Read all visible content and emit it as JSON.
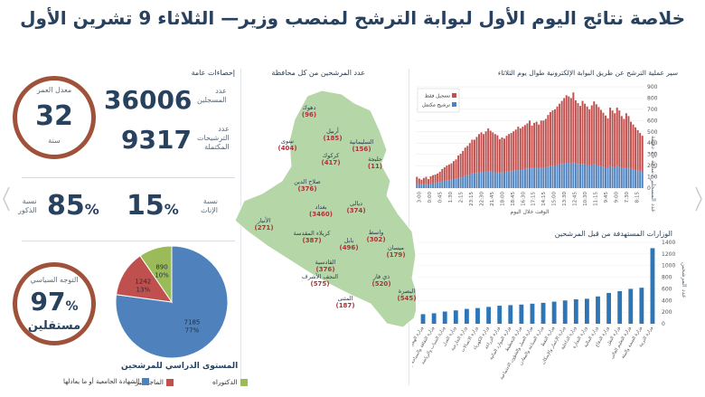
{
  "title": "خلاصة نتائج اليوم الأول لبوابة الترشح لمنصب وزير— الثلاثاء 9 تشرين الأول",
  "stats": {
    "header": "إحصاءات عامة",
    "registered_label_1": "عدد",
    "registered_label_2": "المسجلين",
    "registered_value": "36006",
    "completed_label_1": "عدد",
    "completed_label_2": "الترشيحات",
    "completed_label_3": "المكتملة",
    "completed_value": "9317",
    "avg_age_label": "معدل العمر",
    "avg_age_value": "32",
    "avg_age_unit": "سنة",
    "female_label_1": "نسبة",
    "female_label_2": "الإناث",
    "female_value": "15",
    "male_label_1": "نسبة",
    "male_label_2": "الذكور",
    "male_value": "85",
    "percent_sign": "%",
    "political_label": "التوجه السياسي",
    "political_value": "97",
    "political_sub": "مستقلين"
  },
  "map": {
    "header": "عدد المرشحين من كل محافظة",
    "provinces": [
      {
        "name": "دهوك",
        "value": "(96)"
      },
      {
        "name": "أربيل",
        "value": "(185)"
      },
      {
        "name": "نينوى",
        "value": "(404)"
      },
      {
        "name": "السليمانية",
        "value": "(156)"
      },
      {
        "name": "كركوك",
        "value": "(417)"
      },
      {
        "name": "حلبجة",
        "value": "(11)"
      },
      {
        "name": "صلاح الدين",
        "value": "(376)"
      },
      {
        "name": "ديالى",
        "value": "(374)"
      },
      {
        "name": "بغداد",
        "value": "(3460)"
      },
      {
        "name": "الأنبار",
        "value": "(271)"
      },
      {
        "name": "واسط",
        "value": "(302)"
      },
      {
        "name": "كربلاء المقدسة",
        "value": "(387)"
      },
      {
        "name": "بابل",
        "value": "(496)"
      },
      {
        "name": "القادسية",
        "value": "(376)"
      },
      {
        "name": "النجف الأشرف",
        "value": "(575)"
      },
      {
        "name": "ميسان",
        "value": "(179)"
      },
      {
        "name": "ذي قار",
        "value": "(520)"
      },
      {
        "name": "المثنى",
        "value": "(187)"
      },
      {
        "name": "البصرة",
        "value": "(545)"
      }
    ]
  },
  "chart_data": [
    {
      "type": "bar",
      "title": "سير عملية الترشح عن طريق البوابة الإلكترونية طوال يوم الثلاثاء",
      "xlabel": "الوقت خلال اليوم",
      "ylabel": "عدد المسجلين/ ساعة 15 دقيقة",
      "ylim": [
        0,
        900
      ],
      "yticks": [
        "0",
        "100",
        "200",
        "300",
        "400",
        "500",
        "600",
        "700",
        "800",
        "900"
      ],
      "xticks": [
        "3:00",
        "0:00",
        "0:45",
        "1:30",
        "2:15",
        "23:15",
        "22:30",
        "21:45",
        "18:00",
        "18:45",
        "16:30",
        "17:15",
        "14:15",
        "15:00",
        "13:30",
        "12:45",
        "10:30",
        "11:15",
        "9:45",
        "9:00",
        "7:30",
        "8:15"
      ],
      "stacked": true,
      "legend_placement": "top-left",
      "series": [
        {
          "name": "تسجيل فقط",
          "color": "#c0504d",
          "values": [
            60,
            50,
            45,
            55,
            60,
            50,
            65,
            70,
            75,
            80,
            90,
            110,
            120,
            130,
            140,
            145,
            160,
            170,
            200,
            210,
            230,
            250,
            260,
            280,
            300,
            300,
            320,
            340,
            350,
            340,
            360,
            380,
            360,
            350,
            340,
            330,
            300,
            310,
            300,
            320,
            330,
            340,
            350,
            360,
            380,
            370,
            380,
            390,
            400,
            420,
            380,
            400,
            410,
            390,
            420,
            420,
            430,
            460,
            480,
            490,
            500,
            520,
            540,
            560,
            580,
            600,
            590,
            580,
            620,
            560,
            540,
            520,
            560,
            540,
            520,
            500,
            530,
            560,
            540,
            520,
            500,
            480,
            460,
            440,
            520,
            500,
            480,
            520,
            500,
            460,
            440,
            480,
            460,
            420,
            400,
            380,
            360,
            340,
            320
          ]
        },
        {
          "name": "ترشيح مكتمل",
          "color": "#4f81bd",
          "values": [
            40,
            35,
            30,
            35,
            40,
            30,
            40,
            45,
            45,
            50,
            55,
            60,
            65,
            70,
            70,
            75,
            80,
            85,
            90,
            95,
            100,
            110,
            115,
            120,
            130,
            130,
            135,
            140,
            145,
            140,
            145,
            150,
            150,
            145,
            140,
            140,
            135,
            140,
            140,
            145,
            150,
            150,
            155,
            160,
            165,
            160,
            165,
            170,
            175,
            180,
            175,
            180,
            180,
            175,
            180,
            180,
            185,
            190,
            195,
            200,
            200,
            205,
            210,
            215,
            220,
            225,
            225,
            220,
            230,
            220,
            215,
            210,
            215,
            210,
            205,
            200,
            205,
            210,
            205,
            200,
            195,
            190,
            185,
            180,
            195,
            190,
            185,
            195,
            190,
            180,
            175,
            185,
            180,
            170,
            165,
            160,
            155,
            150,
            145
          ]
        }
      ]
    },
    {
      "type": "bar",
      "title": "الوزارات المستهدفة من قبل المرشحين",
      "ylabel": "عدد المرشحين",
      "ylim": [
        0,
        1400
      ],
      "yticks": [
        "0",
        "200",
        "400",
        "600",
        "800",
        "1000",
        "1200",
        "1400"
      ],
      "categories": [
        "وزارة الهجرة والمهجرين",
        "وزارة الثقافة والسياحة والآثار",
        "وزارة الشباب والرياضة",
        "وزارة العدل",
        "وزارة الخارجية",
        "وزارة الاتصالات",
        "وزارة الكهرباء",
        "وزارة الزراعة",
        "وزارة الموارد المائية",
        "وزارة التخطيط",
        "وزارة العمل والشؤون الاجتماعية",
        "وزارة الصناعة والمعادن",
        "وزارة النفط",
        "وزارة الإعمار والإسكان",
        "وزارة الداخلية",
        "وزارة التجارة",
        "وزارة المالية",
        "وزارة الدفاع",
        "وزارة النقل",
        "وزارة التعليم العالي",
        "وزارة الصحة والبيئة",
        "وزارة التربية"
      ],
      "values": [
        165,
        180,
        210,
        230,
        255,
        270,
        290,
        310,
        320,
        330,
        345,
        360,
        380,
        400,
        420,
        430,
        470,
        530,
        560,
        600,
        620,
        1300
      ],
      "color": "#2e75b6"
    },
    {
      "type": "pie",
      "title": "المستوى الدراسي للمرشحين",
      "series": [
        {
          "name": "الشهادة الجامعية أو ما يعادلها",
          "value": 7185,
          "label": "7185",
          "pct": "77%",
          "color": "#4f81bd"
        },
        {
          "name": "الماجستير",
          "value": 1242,
          "label": "1242",
          "pct": "13%",
          "color": "#c0504d"
        },
        {
          "name": "الدكتوراه",
          "value": 890,
          "label": "890",
          "pct": "10%",
          "color": "#9bbb59"
        }
      ]
    }
  ]
}
